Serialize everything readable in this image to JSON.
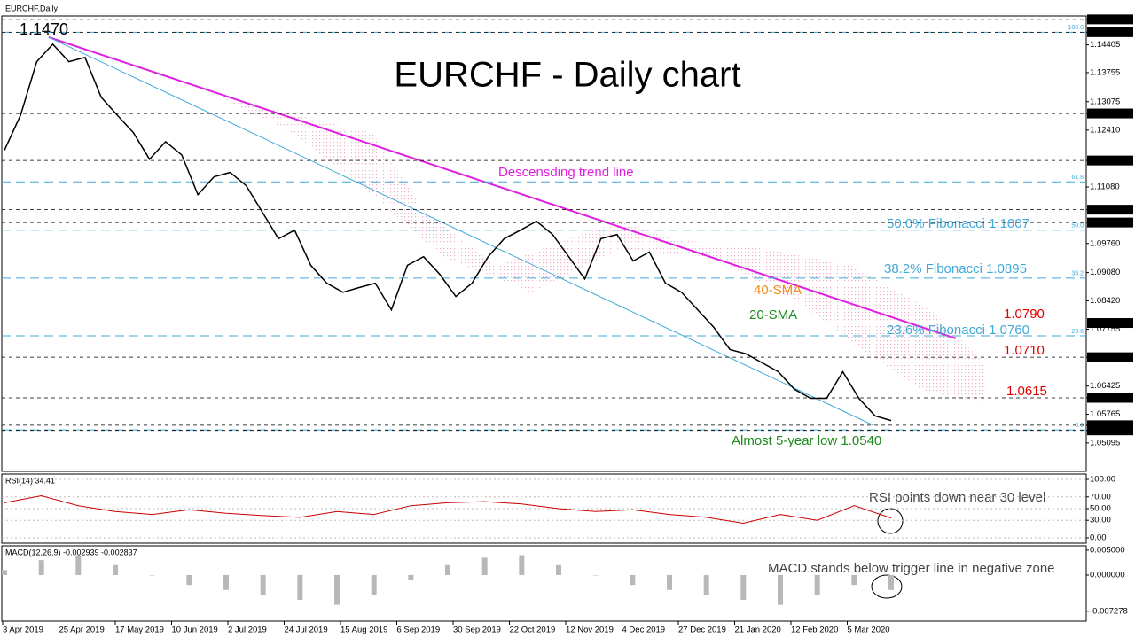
{
  "chart_data": [
    {
      "type": "line",
      "title": "EURCHF - Daily chart",
      "label": "EURCHF,Daily",
      "color": "#000000",
      "values": [
        1.1194,
        1.1276,
        1.1401,
        1.1442,
        1.1401,
        1.1411,
        1.1318,
        1.1276,
        1.1235,
        1.1173,
        1.1214,
        1.1183,
        1.109,
        1.1132,
        1.1142,
        1.1111,
        1.1049,
        1.0987,
        1.1007,
        1.0925,
        1.0883,
        1.0862,
        1.0873,
        1.0883,
        1.0821,
        1.0925,
        1.0945,
        1.0904,
        1.0852,
        1.0883,
        1.0945,
        1.0987,
        1.1007,
        1.1028,
        1.0997,
        1.0945,
        1.0893,
        1.0987,
        1.0997,
        1.0935,
        1.0956,
        1.0883,
        1.0862,
        1.0821,
        1.078,
        1.0728,
        1.0718,
        1.0697,
        1.0676,
        1.0635,
        1.0614,
        1.0614,
        1.0676,
        1.0614,
        1.0573,
        1.0562
      ],
      "ylim": [
        1.0443,
        1.1508
      ],
      "yticks": [
        {
          "value": 1.15,
          "label": "1.15000",
          "highlight": true
        },
        {
          "value": 1.147,
          "label": "1.14470",
          "highlight": true
        },
        {
          "value": 1.14405,
          "label": "1.14405"
        },
        {
          "value": 1.13755,
          "label": "1.13755"
        },
        {
          "value": 1.13075,
          "label": "1.13075"
        },
        {
          "value": 1.128,
          "label": "1.12800",
          "highlight": true
        },
        {
          "value": 1.1241,
          "label": "1.12410"
        },
        {
          "value": 1.117,
          "label": "1.11700",
          "highlight": true
        },
        {
          "value": 1.1108,
          "label": "1.11080"
        },
        {
          "value": 1.1055,
          "label": "1.10550",
          "highlight": true
        },
        {
          "value": 1.1025,
          "label": "1.10250",
          "highlight": true
        },
        {
          "value": 1.0976,
          "label": "1.09760"
        },
        {
          "value": 1.0908,
          "label": "1.09080"
        },
        {
          "value": 1.0842,
          "label": "1.08420"
        },
        {
          "value": 1.079,
          "label": "1.07900",
          "highlight": true
        },
        {
          "value": 1.07755,
          "label": "1.07755"
        },
        {
          "value": 1.071,
          "label": "1.07100",
          "highlight": true
        },
        {
          "value": 1.06425,
          "label": "1.06425"
        },
        {
          "value": 1.0615,
          "label": "1.06150",
          "highlight": true
        },
        {
          "value": 1.05765,
          "label": "1.05765"
        },
        {
          "value": 1.0551,
          "label": "1.05510",
          "highlight": true
        },
        {
          "value": 1.0539,
          "label": "1.05390",
          "highlight": true
        },
        {
          "value": 1.05095,
          "label": "1.05095"
        }
      ],
      "fib_levels": [
        {
          "value": 1.147,
          "label": "100.0"
        },
        {
          "value": 1.112,
          "label": "61.8"
        },
        {
          "value": 1.1007,
          "label": "50.0"
        },
        {
          "value": 1.0895,
          "label": "38.2"
        },
        {
          "value": 1.076,
          "label": "23.6"
        },
        {
          "value": 1.054,
          "label": "0.0"
        }
      ],
      "fib_color": "#3fa9d8",
      "annotations": [
        "1.1470",
        "Descensding trend line",
        "50.0% Fibonacci 1.1007",
        "38.2% Fibonacci 1.0895",
        "40-SMA",
        "20-SMA",
        "23.6% Fibonacci 1.0760",
        "1.0790",
        "1.0710",
        "1.0615",
        "Almost 5-year low 1.0540"
      ]
    },
    {
      "type": "line",
      "label": "RSI(14) 34.41",
      "color": "#cc0000",
      "values": [
        60,
        72,
        55,
        45,
        40,
        48,
        42,
        38,
        35,
        45,
        40,
        55,
        60,
        62,
        58,
        50,
        45,
        48,
        40,
        35,
        25,
        40,
        30,
        55,
        34
      ],
      "ylim": [
        0,
        100
      ],
      "grid": true,
      "yticks": [
        {
          "value": 100,
          "label": "100.00"
        },
        {
          "value": 70,
          "label": "70.00"
        },
        {
          "value": 50,
          "label": "50.00"
        },
        {
          "value": 30,
          "label": "30.00"
        },
        {
          "value": 0,
          "label": "0.00"
        }
      ],
      "annotations": [
        "RSI points down near 30 level"
      ]
    },
    {
      "type": "bar",
      "label": "MACD(12,26,9) -0.002939 -0.002837",
      "color": "#b8b8b8",
      "values": [
        0.001,
        0.003,
        0.004,
        0.002,
        0.0,
        -0.002,
        -0.003,
        -0.004,
        -0.005,
        -0.006,
        -0.004,
        -0.001,
        0.002,
        0.0035,
        0.004,
        0.002,
        0.0,
        -0.002,
        -0.003,
        -0.004,
        -0.005,
        -0.006,
        -0.004,
        -0.002,
        -0.003
      ],
      "ylim": [
        -0.0091,
        0.0057
      ],
      "yticks": [
        {
          "value": 0.005,
          "label": "0.005000"
        },
        {
          "value": 0,
          "label": "0.000000"
        },
        {
          "value": -0.007278,
          "label": "-0.007278"
        }
      ],
      "annotations": [
        "MACD stands below trigger line in negative zone"
      ],
      "x_labels": [
        "3 Apr 2019",
        "25 Apr 2019",
        "17 May 2019",
        "10 Jun 2019",
        "2 Jul 2019",
        "24 Jul 2019",
        "15 Aug 2019",
        "6 Sep 2019",
        "30 Sep 2019",
        "22 Oct 2019",
        "12 Nov 2019",
        "4 Dec 2019",
        "27 Dec 2019",
        "21 Jan 2020",
        "12 Feb 2020",
        "5 Mar 2020"
      ]
    }
  ]
}
